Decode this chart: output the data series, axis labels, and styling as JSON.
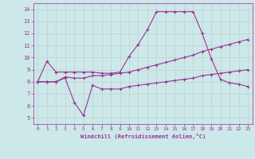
{
  "title": "",
  "xlabel": "Windchill (Refroidissement éolien,°C)",
  "bg_color": "#cce8e8",
  "line_color": "#993399",
  "grid_color": "#bbcccc",
  "xlim": [
    -0.5,
    23.5
  ],
  "ylim": [
    4.5,
    14.5
  ],
  "xticks": [
    0,
    1,
    2,
    3,
    4,
    5,
    6,
    7,
    8,
    9,
    10,
    11,
    12,
    13,
    14,
    15,
    16,
    17,
    18,
    19,
    20,
    21,
    22,
    23
  ],
  "yticks": [
    5,
    6,
    7,
    8,
    9,
    10,
    11,
    12,
    13,
    14
  ],
  "line1_x": [
    0,
    1,
    2,
    3,
    4,
    5,
    6,
    7,
    8,
    9,
    10,
    11,
    12,
    13,
    14,
    15,
    16,
    17,
    18,
    19,
    20,
    21,
    22,
    23
  ],
  "line1_y": [
    8.0,
    9.7,
    8.8,
    8.8,
    8.8,
    8.8,
    8.8,
    8.7,
    8.7,
    8.8,
    10.1,
    11.1,
    12.3,
    13.8,
    13.8,
    13.8,
    13.8,
    13.8,
    12.0,
    9.9,
    8.2,
    7.9,
    7.8,
    7.6
  ],
  "line2_x": [
    0,
    1,
    2,
    3,
    4,
    5,
    6,
    7,
    8,
    9,
    10,
    11,
    12,
    13,
    14,
    15,
    16,
    17,
    18,
    19,
    20,
    21,
    22,
    23
  ],
  "line2_y": [
    8.0,
    8.0,
    8.0,
    8.4,
    8.3,
    8.3,
    8.5,
    8.5,
    8.6,
    8.7,
    8.8,
    9.0,
    9.2,
    9.4,
    9.6,
    9.8,
    10.0,
    10.2,
    10.5,
    10.7,
    10.9,
    11.1,
    11.3,
    11.5
  ],
  "line3_x": [
    0,
    1,
    2,
    3,
    4,
    5,
    6,
    7,
    8,
    9,
    10,
    11,
    12,
    13,
    14,
    15,
    16,
    17,
    18,
    19,
    20,
    21,
    22,
    23
  ],
  "line3_y": [
    8.0,
    8.0,
    8.0,
    8.3,
    6.3,
    5.2,
    7.7,
    7.4,
    7.4,
    7.4,
    7.6,
    7.7,
    7.8,
    7.9,
    8.0,
    8.1,
    8.2,
    8.3,
    8.5,
    8.6,
    8.7,
    8.8,
    8.9,
    9.0
  ]
}
